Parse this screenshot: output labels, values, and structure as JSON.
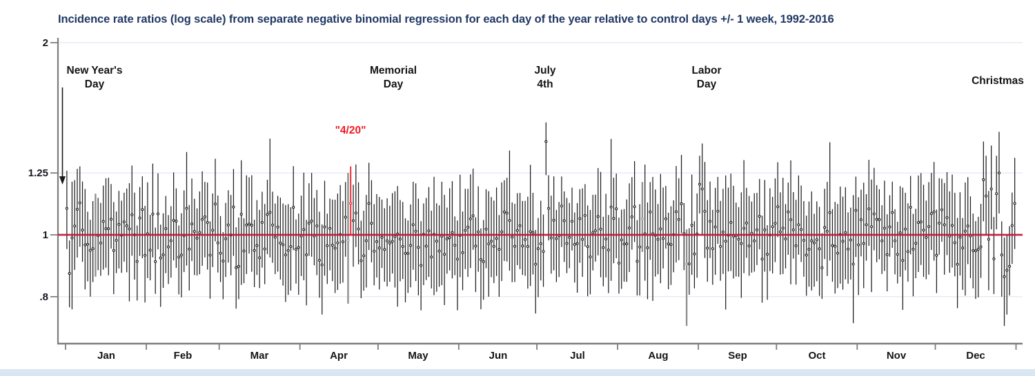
{
  "title": "Incidence rate ratios (log scale) from separate negative binomial regression for each day of the year relative to control days +/- 1 week, 1992-2016",
  "colors": {
    "title": "#203864",
    "red_line": "#c0143c",
    "highlight": "#ed1c24",
    "bar": "#1c1c1c",
    "gray_bar": "#909090",
    "grid": "#e8eef5",
    "axis": "#7d7d7d",
    "ink": "#141414",
    "bottom_band": "#dbe6f3"
  },
  "annotations": {
    "new_years": {
      "text": "New Year's\nDay"
    },
    "memorial": {
      "text": "Memorial\nDay"
    },
    "four_twenty": {
      "text": "\"4/20\""
    },
    "july4": {
      "text": "July\n4th"
    },
    "labor": {
      "text": "Labor\nDay"
    },
    "christmas": {
      "text": "Christmas"
    }
  },
  "chart_data": {
    "type": "errorbar",
    "title": "Incidence rate ratios (log scale) from separate negative binomial regression for each day of the year relative to control days +/- 1 week, 1992-2016",
    "x_unit": "day of year (1-365)",
    "months": [
      "Jan",
      "Feb",
      "Mar",
      "Apr",
      "May",
      "Jun",
      "Jul",
      "Aug",
      "Sep",
      "Oct",
      "Nov",
      "Dec"
    ],
    "month_boundary_days": [
      0,
      31,
      59,
      90,
      120,
      151,
      181,
      212,
      243,
      273,
      304,
      334,
      365
    ],
    "y_scale": "log",
    "y_ticks": [
      "2",
      "1.25",
      "1",
      ".8"
    ],
    "y_tick_values": [
      2,
      1.25,
      1,
      0.8
    ],
    "ylim": [
      0.67,
      2
    ],
    "grid": "on",
    "reference_line": {
      "value": 1
    },
    "highlight_day": {
      "day": 110,
      "date": "Apr 20",
      "label": "\"4/20\""
    },
    "gray_days": [
      12,
      109,
      222,
      239
    ],
    "notable_days": [
      {
        "day_of_year": 1,
        "date": "Jan 1",
        "label": "New Year's Day",
        "mid": 1.1,
        "lo": 0.95,
        "hi": 1.26
      },
      {
        "day_of_year": 110,
        "date": "Apr 20",
        "label": "\"4/20\"",
        "mid": 1.12,
        "lo": 1.0,
        "hi": 1.28
      },
      {
        "day_of_year": 185,
        "date": "Jul 4",
        "label": "July 4th",
        "mid": 1.4,
        "lo": 1.24,
        "hi": 1.57
      },
      {
        "day_of_year": 245,
        "date": "Sep 2",
        "label": "Labor Day",
        "mid": 1.18,
        "lo": 1.0,
        "hi": 1.39
      },
      {
        "day_of_year": 359,
        "date": "Dec 25",
        "label": "Christmas",
        "mid": 1.25,
        "lo": 1.08,
        "hi": 1.45
      }
    ],
    "overrides": {
      "1": [
        0.95,
        1.1,
        1.26
      ],
      "2": [
        0.77,
        0.87,
        0.98
      ],
      "12": [
        0.86,
        1.0,
        1.16
      ],
      "109": [
        0.78,
        0.98,
        1.25
      ],
      "110": [
        1.0,
        1.12,
        1.28
      ],
      "185": [
        1.24,
        1.4,
        1.57
      ],
      "186": [
        0.98,
        1.1,
        1.24
      ],
      "222": [
        0.94,
        1.06,
        1.21
      ],
      "239": [
        0.72,
        0.9,
        1.02
      ],
      "244": [
        1.08,
        1.2,
        1.33
      ],
      "245": [
        1.0,
        1.18,
        1.39
      ],
      "353": [
        1.05,
        1.22,
        1.4
      ],
      "354": [
        1.0,
        1.15,
        1.33
      ],
      "356": [
        1.02,
        1.18,
        1.38
      ],
      "358": [
        1.02,
        1.16,
        1.33
      ],
      "359": [
        1.08,
        1.25,
        1.45
      ],
      "360": [
        0.8,
        0.93,
        1.05
      ],
      "361": [
        0.72,
        0.86,
        0.99
      ],
      "362": [
        0.75,
        0.88,
        1.0
      ],
      "365": [
        0.95,
        1.12,
        1.32
      ]
    },
    "bars": {
      "count": 365,
      "seed": 420420,
      "mid_spread_log10": 0.055,
      "ci_halfwidth_log10_min": 0.045,
      "ci_halfwidth_log10_range": 0.035,
      "long_bar_prob": 0.12,
      "long_bar_scale": 1.45,
      "lo_clamp": 0.665,
      "hi_clamp": 1.5,
      "typical_mid_range": [
        0.88,
        1.13
      ],
      "typical_ci_top_range": [
        1.05,
        1.28
      ],
      "typical_ci_bottom_range": [
        0.75,
        0.96
      ]
    }
  }
}
